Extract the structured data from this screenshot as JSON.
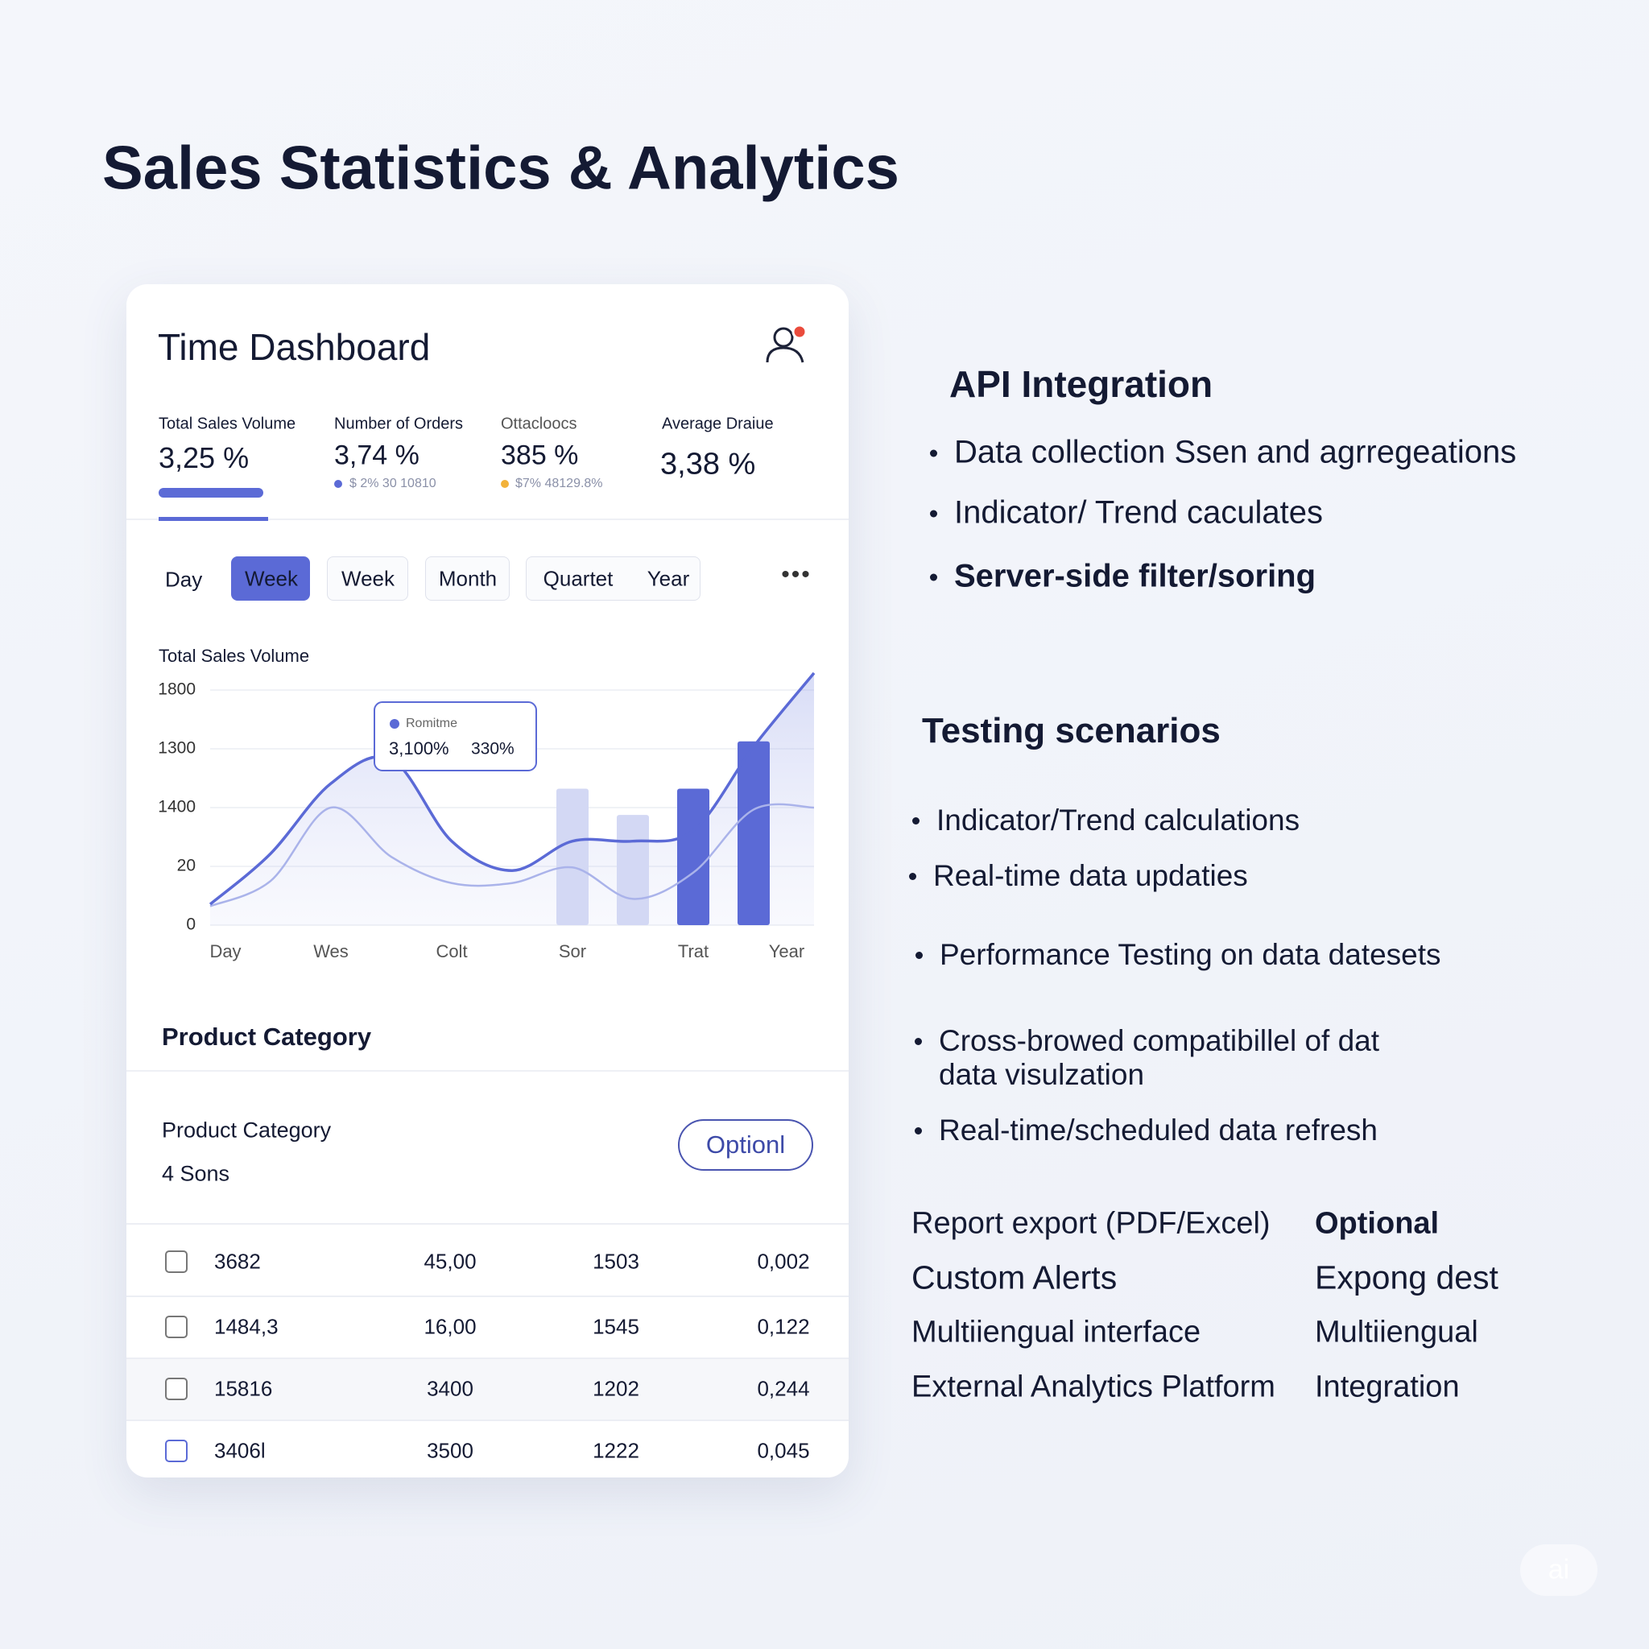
{
  "header": {
    "title": "Sales Statistics & Analytics"
  },
  "dashboard": {
    "title": "Time Dashboard",
    "metrics": [
      {
        "label": "Total Sales Volume",
        "value": "3,25 %"
      },
      {
        "label": "Number of Orders",
        "value": "3,74 %",
        "detail": "$ 2% 30 10810"
      },
      {
        "label": "Ottacloocs",
        "value": "385 %",
        "detail": "$7% 48129.8%"
      },
      {
        "label": "Average Draiue",
        "value": "3,38 %"
      }
    ],
    "tabs": [
      "Day",
      "Week",
      "Week",
      "Month",
      "Quartet",
      "Year"
    ],
    "active_tab": 1,
    "section_title": "Product Category"
  },
  "chart_data": {
    "type": "area",
    "title": "Total Sales Volume",
    "categories": [
      "Day",
      null,
      "Wes",
      null,
      "Colt",
      null,
      "Sor",
      null,
      "Trat",
      null,
      "Year"
    ],
    "ylim": [
      0,
      1800
    ],
    "y_labels": [
      "1800",
      "1300",
      "1400",
      "20",
      "0"
    ],
    "series": [
      {
        "color": "#5b6ad6",
        "values": [
          160,
          547,
          1085,
          1270,
          643,
          418,
          643,
          643,
          724,
          1367,
          1930
        ]
      },
      {
        "color": "#aab3ea",
        "values": [
          145,
          338,
          900,
          523,
          322,
          322,
          442,
          201,
          402,
          885,
          900
        ]
      }
    ],
    "bars": [
      {
        "color": "#d3d8f4",
        "values": [
          null,
          null,
          null,
          null,
          null,
          null,
          1045,
          844,
          null,
          null,
          null
        ]
      },
      {
        "color": "#5b6ad6",
        "values": [
          null,
          null,
          null,
          null,
          null,
          null,
          null,
          null,
          1045,
          1407,
          null
        ]
      }
    ],
    "tooltip": {
      "label": "Romitme",
      "values": [
        "3,100%",
        "330%"
      ]
    }
  },
  "products": {
    "title": "Product Category",
    "count": "4 Sons",
    "button": "Optionl",
    "rows": [
      [
        "3682",
        "45,00",
        "1503",
        "0,002"
      ],
      [
        "1484,3",
        "16,00",
        "1545",
        "0,122"
      ],
      [
        "15816",
        "3400",
        "1202",
        "0,244"
      ],
      [
        "3406l",
        "3500",
        "1222",
        "0,045"
      ]
    ]
  },
  "api": {
    "title": "API Integration",
    "items": [
      "Data collection Ssen and agrregeations",
      "Indicator/ Trend caculates",
      "Server-side filter/soring"
    ]
  },
  "testing": {
    "title": "Testing scenarios",
    "items": [
      [
        "Indicator/Trend calculations"
      ],
      [
        "Real-time data updaties"
      ],
      [
        "Performance Testing on data datesets"
      ],
      [
        "Cross-browed compatibillel of dat",
        "data visulzation"
      ],
      [
        "Real-time/scheduled data refresh"
      ]
    ]
  },
  "features": {
    "rows": [
      [
        "Report export (PDF/Excel)",
        "Optional"
      ],
      [
        "Custom Alerts",
        "Expong dest"
      ],
      [
        "Multiiengual interface",
        "Multiiengual"
      ],
      [
        "External Analytics Platform",
        "Integration"
      ]
    ]
  },
  "watermark": "ai"
}
